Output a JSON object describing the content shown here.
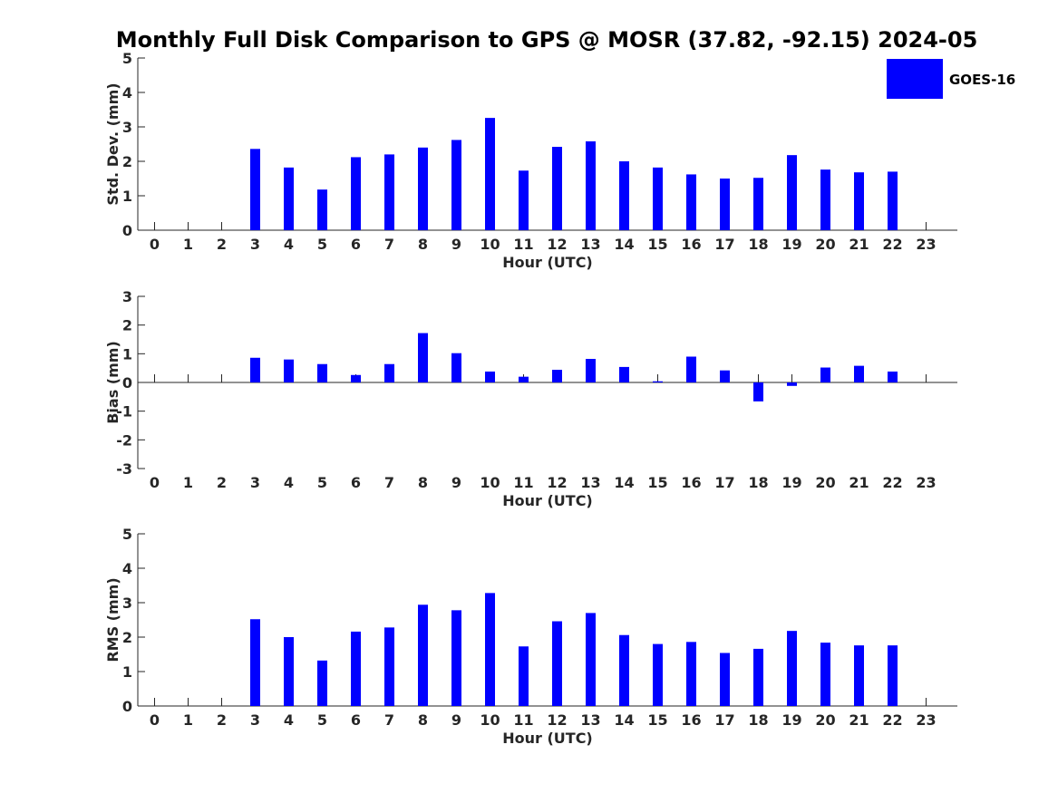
{
  "figure": {
    "title": "Monthly Full Disk Comparison to GPS @ MOSR (37.82, -92.15) 2024-05",
    "legend": {
      "label": "GOES-16",
      "color": "#0000ff"
    }
  },
  "chart_data": [
    {
      "type": "bar",
      "title": "",
      "xlabel": "Hour (UTC)",
      "ylabel": "Std. Dev. (mm)",
      "ylim": [
        0,
        5
      ],
      "yticks": [
        0,
        1,
        2,
        3,
        4,
        5
      ],
      "x": [
        0,
        1,
        2,
        3,
        4,
        5,
        6,
        7,
        8,
        9,
        10,
        11,
        12,
        13,
        14,
        15,
        16,
        17,
        18,
        19,
        20,
        21,
        22,
        23
      ],
      "series": [
        {
          "name": "GOES-16",
          "values": [
            null,
            null,
            null,
            2.36,
            1.82,
            1.18,
            2.12,
            2.2,
            2.4,
            2.62,
            3.26,
            1.73,
            2.42,
            2.58,
            2.0,
            1.82,
            1.62,
            1.5,
            1.52,
            2.18,
            1.76,
            1.68,
            1.7,
            null
          ]
        }
      ]
    },
    {
      "type": "bar",
      "title": "",
      "xlabel": "Hour (UTC)",
      "ylabel": "Bias (mm)",
      "ylim": [
        -3,
        3
      ],
      "yticks": [
        -3,
        -2,
        -1,
        0,
        1,
        2,
        3
      ],
      "x": [
        0,
        1,
        2,
        3,
        4,
        5,
        6,
        7,
        8,
        9,
        10,
        11,
        12,
        13,
        14,
        15,
        16,
        17,
        18,
        19,
        20,
        21,
        22,
        23
      ],
      "series": [
        {
          "name": "GOES-16",
          "values": [
            null,
            null,
            null,
            0.86,
            0.8,
            0.64,
            0.26,
            0.64,
            1.72,
            1.02,
            0.38,
            0.2,
            0.44,
            0.82,
            0.54,
            0.04,
            0.9,
            0.42,
            -0.66,
            -0.12,
            0.52,
            0.58,
            0.38,
            null
          ]
        }
      ]
    },
    {
      "type": "bar",
      "title": "",
      "xlabel": "Hour (UTC)",
      "ylabel": "RMS (mm)",
      "ylim": [
        0,
        5
      ],
      "yticks": [
        0,
        1,
        2,
        3,
        4,
        5
      ],
      "x": [
        0,
        1,
        2,
        3,
        4,
        5,
        6,
        7,
        8,
        9,
        10,
        11,
        12,
        13,
        14,
        15,
        16,
        17,
        18,
        19,
        20,
        21,
        22,
        23
      ],
      "series": [
        {
          "name": "GOES-16",
          "values": [
            null,
            null,
            null,
            2.52,
            2.0,
            1.32,
            2.16,
            2.28,
            2.94,
            2.78,
            3.28,
            1.73,
            2.46,
            2.7,
            2.06,
            1.8,
            1.86,
            1.54,
            1.66,
            2.18,
            1.84,
            1.76,
            1.76,
            null
          ]
        }
      ]
    }
  ]
}
